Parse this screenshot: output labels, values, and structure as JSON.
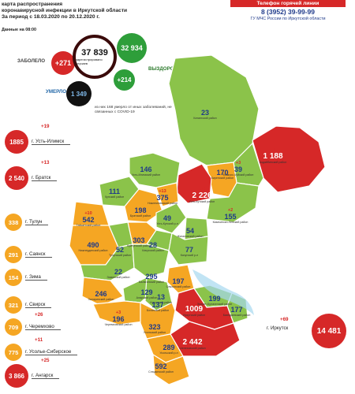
{
  "header": {
    "line1": "карта распространения",
    "line2": "коронавирусной инфекции в Иркутской области",
    "line3": "За период с 18.03.2020 по 20.12.2020 г.",
    "as_of": "Данные на 08:00"
  },
  "hotline": {
    "title": "Телефон горячей линии",
    "phone": "8 (3952) 39-99-99",
    "org": "ГУ МЧС России по Иркутской области"
  },
  "summary": {
    "total": "37 839",
    "total_caption": "зарегистрировано случаев",
    "sick_label": "ЗАБОЛЕЛО",
    "sick_delta": "+271",
    "recovered": "32 934",
    "recovered_label": "ВЫЗДОРОВЕЛО",
    "recovered_delta": "+214",
    "died_label": "УМЕРЛО",
    "died": "1 349",
    "died_note": "из них 168 умерло от иных заболеваний, не связанных с COVID-19"
  },
  "colors": {
    "red": "#d62828",
    "orange": "#f5a623",
    "green": "#8bc34a",
    "navy": "#1f3a8a",
    "blue": "#2468a8"
  },
  "left_cities": [
    {
      "delta": "+19",
      "value": "1885",
      "name": "г. Усть-Илимск"
    },
    {
      "delta": "+13",
      "value": "2 540",
      "name": "г. Братск"
    },
    {
      "delta": "",
      "value": "338",
      "name": "г. Тулун"
    },
    {
      "delta": "",
      "value": "291",
      "name": "г. Саянск"
    },
    {
      "delta": "",
      "value": "154",
      "name": "г. Зима"
    },
    {
      "delta": "",
      "value": "321",
      "name": "г. Свирск"
    },
    {
      "delta": "+26",
      "value": "709",
      "name": "г. Черемхово"
    },
    {
      "delta": "+11",
      "value": "775",
      "name": "г. Усолье-Сибирское"
    },
    {
      "delta": "+25",
      "value": "3 866",
      "name": "г. Ангарск"
    }
  ],
  "irkutsk_city": {
    "delta": "+69",
    "value": "14 481",
    "name": "г. Иркутск"
  },
  "districts": [
    {
      "value": "23",
      "name": "Катангский район"
    },
    {
      "value": "1 188",
      "name": "Бодайбинский район",
      "delta": "+5"
    },
    {
      "value": "39",
      "name": "Мамско-Чуйский район",
      "delta": "+3"
    },
    {
      "value": "170",
      "name": "Киренский район"
    },
    {
      "value": "2 226",
      "name": "Усть-Кутский район",
      "delta": "+23"
    },
    {
      "value": "155",
      "name": "Казачинско-Ленский район",
      "delta": "+2"
    },
    {
      "value": "146",
      "name": "Усть-Илимский район"
    },
    {
      "value": "375",
      "name": "Нижнеилимский район",
      "delta": "+13"
    },
    {
      "value": "111",
      "name": "Чунский район"
    },
    {
      "value": "198",
      "name": "Братский район"
    },
    {
      "value": "542",
      "name": "Тайшетский район",
      "delta": "+10"
    },
    {
      "value": "49",
      "name": "Усть-Кутский р-н"
    },
    {
      "value": "54",
      "name": "Жигаловский район"
    },
    {
      "value": "490",
      "name": "Нижнеудинский район"
    },
    {
      "value": "303",
      "name": "Куйтунский район"
    },
    {
      "value": "28",
      "name": "Качугский район"
    },
    {
      "value": "77",
      "name": "Качугский р-н"
    },
    {
      "value": "52",
      "name": "Тулунский район"
    },
    {
      "value": "22",
      "name": "Зиминский район"
    },
    {
      "value": "295",
      "name": "Балаганский район"
    },
    {
      "value": "197",
      "name": "Ольхонский район"
    },
    {
      "value": "246",
      "name": "Заларинский район"
    },
    {
      "value": "129",
      "name": "Аларский район"
    },
    {
      "value": "13",
      "name": "Нукутский район"
    },
    {
      "value": "137",
      "name": "Боханский район"
    },
    {
      "value": "196",
      "name": "Черемховский район",
      "delta": "+3"
    },
    {
      "value": "1009",
      "name": "Иркутский район",
      "delta": "+6"
    },
    {
      "value": "199",
      "name": "Эхирит-Булагатский район"
    },
    {
      "value": "177",
      "name": "Баяндаевский район"
    },
    {
      "value": "323",
      "name": "Усольский район"
    },
    {
      "value": "2 442",
      "name": "Шелеховский район",
      "delta": "+6"
    },
    {
      "value": "289",
      "name": "Усольский р-н"
    },
    {
      "value": "592",
      "name": "Слюдянский район"
    }
  ]
}
